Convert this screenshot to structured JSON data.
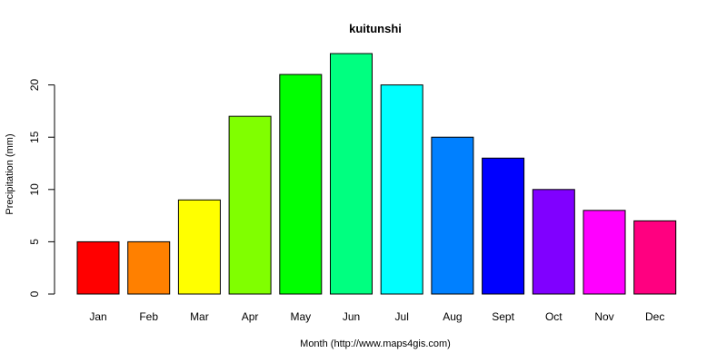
{
  "chart_data": {
    "type": "bar",
    "title": "kuitunshi",
    "xlabel": "Month (http://www.maps4gis.com)",
    "ylabel": "Precipitation (mm)",
    "categories": [
      "Jan",
      "Feb",
      "Mar",
      "Apr",
      "May",
      "Jun",
      "Jul",
      "Aug",
      "Sept",
      "Oct",
      "Nov",
      "Dec"
    ],
    "values": [
      5,
      5,
      9,
      17,
      21,
      23,
      20,
      15,
      13,
      10,
      8,
      7
    ],
    "colors": [
      "#ff0000",
      "#ff8000",
      "#ffff00",
      "#80ff00",
      "#00ff00",
      "#00ff80",
      "#00ffff",
      "#0080ff",
      "#0000ff",
      "#8000ff",
      "#ff00ff",
      "#ff0080"
    ],
    "yticks": [
      0,
      5,
      10,
      15,
      20
    ],
    "ylim": [
      0,
      23
    ],
    "grid": false,
    "legend": "none"
  }
}
